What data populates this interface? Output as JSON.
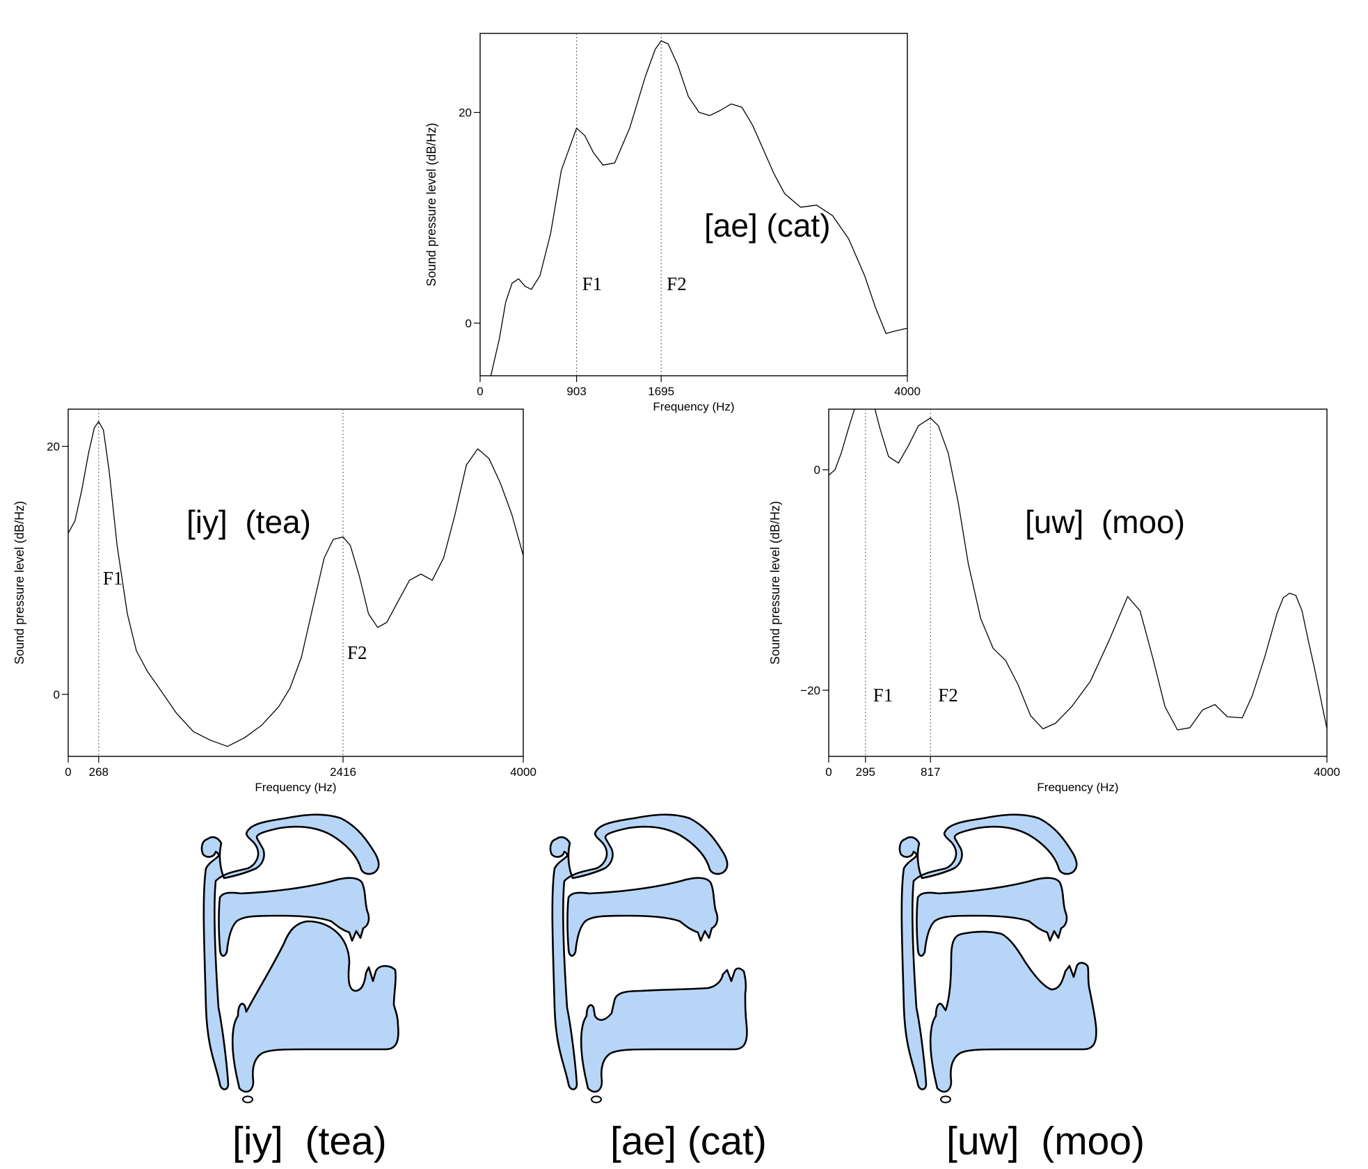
{
  "chart_data": [
    {
      "id": "ae",
      "type": "line",
      "vowel_label": "[ae] (cat)",
      "xlabel": "Frequency (Hz)",
      "ylabel": "Sound pressure level (dB/Hz)",
      "xlim": [
        0,
        4000
      ],
      "ylim": [
        -5,
        27.5
      ],
      "xticks": [
        0,
        903,
        1695,
        4000
      ],
      "yticks": [
        0,
        20
      ],
      "formants": [
        {
          "label": "F1",
          "x": 903
        },
        {
          "label": "F2",
          "x": 1695
        }
      ],
      "x": [
        100,
        180,
        240,
        300,
        360,
        420,
        480,
        560,
        660,
        760,
        903,
        980,
        1060,
        1150,
        1260,
        1400,
        1550,
        1640,
        1695,
        1760,
        1850,
        1950,
        2050,
        2150,
        2250,
        2350,
        2450,
        2550,
        2650,
        2750,
        2850,
        3000,
        3150,
        3300,
        3450,
        3600,
        3700,
        3800,
        3870,
        3950,
        4000
      ],
      "y": [
        -5,
        -1.5,
        2,
        3.8,
        4.2,
        3.5,
        3.2,
        4.5,
        8.5,
        14.5,
        18.5,
        17.8,
        16.2,
        15,
        15.2,
        18.5,
        23.5,
        26,
        26.8,
        26.5,
        24.5,
        21.5,
        20,
        19.7,
        20.2,
        20.8,
        20.5,
        18.8,
        16.5,
        14.2,
        12.3,
        11,
        11.2,
        10.2,
        8,
        4.5,
        1.5,
        -1,
        -0.8,
        -0.6,
        -0.5
      ]
    },
    {
      "id": "iy",
      "type": "line",
      "vowel_label": "[iy]  (tea)",
      "xlabel": "Frequency (Hz)",
      "ylabel": "Sound pressure level (dB/Hz)",
      "xlim": [
        0,
        4000
      ],
      "ylim": [
        -5,
        23
      ],
      "xticks": [
        0,
        268,
        2416,
        4000
      ],
      "yticks": [
        0,
        20
      ],
      "formants": [
        {
          "label": "F1",
          "x": 268
        },
        {
          "label": "F2",
          "x": 2416
        }
      ],
      "x": [
        0,
        60,
        120,
        180,
        230,
        268,
        310,
        360,
        430,
        520,
        600,
        700,
        800,
        950,
        1100,
        1250,
        1400,
        1550,
        1700,
        1850,
        1950,
        2050,
        2150,
        2250,
        2330,
        2416,
        2480,
        2560,
        2640,
        2720,
        2800,
        2900,
        3000,
        3100,
        3200,
        3300,
        3400,
        3500,
        3600,
        3700,
        3800,
        3900,
        4000
      ],
      "y": [
        13,
        14,
        16.5,
        19.5,
        21.5,
        22,
        21.3,
        18,
        12,
        6.5,
        3.5,
        1.8,
        0.5,
        -1.5,
        -3,
        -3.7,
        -4.2,
        -3.5,
        -2.5,
        -1,
        0.5,
        3,
        7,
        11,
        12.5,
        12.7,
        12,
        9.5,
        6.5,
        5.4,
        5.8,
        7.5,
        9.2,
        9.7,
        9.2,
        11,
        14.5,
        18.5,
        19.8,
        19,
        17,
        14.5,
        11.2
      ]
    },
    {
      "id": "uw",
      "type": "line",
      "vowel_label": "[uw]  (moo)",
      "xlabel": "Frequency (Hz)",
      "ylabel": "Sound pressure level (dB/Hz)",
      "xlim": [
        0,
        4000
      ],
      "ylim": [
        -26,
        5.5
      ],
      "xticks": [
        0,
        295,
        817,
        4000
      ],
      "yticks": [
        -20,
        0
      ],
      "formants": [
        {
          "label": "F1",
          "x": 295
        },
        {
          "label": "F2",
          "x": 817
        }
      ],
      "x": [
        0,
        50,
        100,
        160,
        220,
        295,
        350,
        410,
        480,
        560,
        640,
        720,
        817,
        880,
        960,
        1040,
        1120,
        1220,
        1320,
        1420,
        1520,
        1620,
        1720,
        1820,
        1950,
        2100,
        2250,
        2400,
        2500,
        2600,
        2700,
        2800,
        2900,
        3000,
        3100,
        3200,
        3320,
        3400,
        3500,
        3600,
        3650,
        3700,
        3750,
        3800,
        3850,
        3900,
        4000
      ],
      "y": [
        -0.5,
        0,
        1.5,
        3.8,
        6,
        7,
        6.4,
        3.8,
        1.2,
        0.6,
        2.2,
        4,
        4.7,
        4,
        1.5,
        -3,
        -8.5,
        -13.5,
        -16.2,
        -17.3,
        -19.5,
        -22.3,
        -23.5,
        -23,
        -21.5,
        -19.2,
        -15.5,
        -11.5,
        -12.8,
        -17,
        -21.5,
        -23.6,
        -23.4,
        -21.8,
        -21.3,
        -22.4,
        -22.5,
        -20.5,
        -17,
        -13,
        -11.6,
        -11.2,
        -11.4,
        -12.8,
        -15.5,
        -18,
        -23.5
      ]
    }
  ],
  "captions": [
    "[iy]  (tea)",
    "[ae] (cat)",
    "[uw]  (moo)"
  ],
  "colors": {
    "tract_fill": "#b7d6f7",
    "tract_stroke": "#000000",
    "line": "#000000"
  }
}
